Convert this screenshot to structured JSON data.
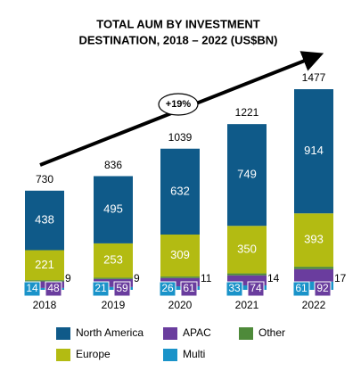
{
  "chart_data": {
    "type": "stacked-bar",
    "title": [
      "TOTAL AUM BY INVESTMENT",
      "DESTINATION, 2018 – 2022 (US$BN)"
    ],
    "annotation": "+19%",
    "categories": [
      "2018",
      "2019",
      "2020",
      "2021",
      "2022"
    ],
    "totals": [
      730,
      836,
      1039,
      1221,
      1477
    ],
    "series": [
      {
        "name": "Multi",
        "color": "#1a93c9",
        "values": [
          14,
          21,
          26,
          33,
          61
        ]
      },
      {
        "name": "APAC",
        "color": "#6a3d9e",
        "values": [
          48,
          59,
          61,
          74,
          92
        ]
      },
      {
        "name": "Other",
        "color": "#4e8a3a",
        "values": [
          9,
          9,
          11,
          14,
          17
        ]
      },
      {
        "name": "Europe",
        "color": "#b3bb12",
        "values": [
          221,
          253,
          309,
          350,
          393
        ]
      },
      {
        "name": "North America",
        "color": "#0f5a89",
        "values": [
          438,
          495,
          632,
          749,
          914
        ]
      }
    ]
  }
}
